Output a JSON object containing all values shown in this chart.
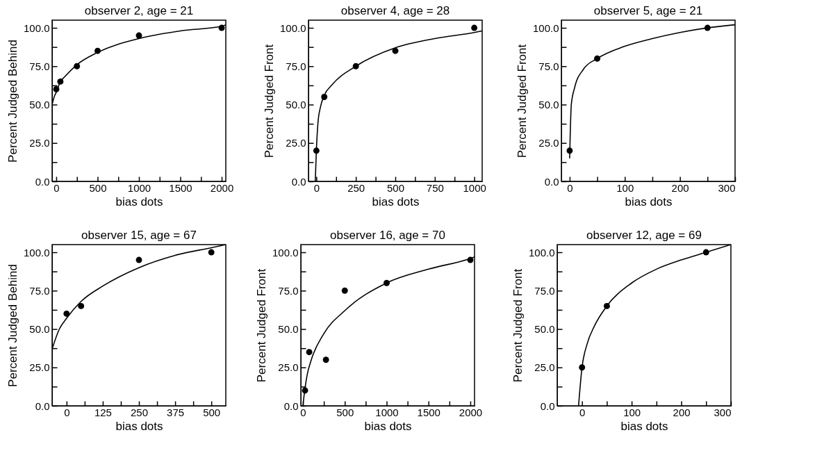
{
  "chart_data": [
    {
      "type": "scatter",
      "title": "observer 2, age = 21",
      "xlabel": "bias dots",
      "ylabel": "Percent Judged Behind",
      "xlim": [
        -50,
        2050
      ],
      "ylim": [
        0,
        105
      ],
      "xticks": [
        0,
        {
          "value": 250,
          "label": null
        },
        500,
        {
          "value": 750,
          "label": null
        },
        1000,
        {
          "value": 1250,
          "label": null
        },
        1500,
        {
          "value": 1750,
          "label": null
        },
        2000
      ],
      "yticks": [
        {
          "value": 0,
          "label": "0.0"
        },
        {
          "value": 12.5,
          "label": null
        },
        {
          "value": 25,
          "label": "25.0"
        },
        {
          "value": 37.5,
          "label": null
        },
        {
          "value": 50,
          "label": "50.0"
        },
        {
          "value": 62.5,
          "label": null
        },
        {
          "value": 75,
          "label": "75.0"
        },
        {
          "value": 87.5,
          "label": null
        },
        {
          "value": 100,
          "label": "100.0"
        }
      ],
      "series": [
        {
          "type": "scatter",
          "marker": "circle",
          "color": "#000000",
          "x": [
            0,
            50,
            250,
            500,
            1000,
            2000
          ],
          "values": [
            60,
            65,
            75,
            85,
            95,
            100
          ]
        },
        {
          "type": "line",
          "color": "#000000",
          "x": [
            -50,
            -25,
            0,
            50,
            100,
            250,
            500,
            1000,
            1500,
            2000,
            2050
          ],
          "values": [
            50,
            55,
            58,
            65,
            68,
            76,
            84,
            93,
            98,
            101,
            102
          ]
        }
      ]
    },
    {
      "type": "scatter",
      "title": "observer 4, age = 28",
      "xlabel": "bias dots",
      "ylabel": "Percent Judged Front",
      "xlim": [
        -50,
        1050
      ],
      "ylim": [
        0,
        105
      ],
      "xticks": [
        0,
        {
          "value": 125,
          "label": null
        },
        250,
        {
          "value": 375,
          "label": null
        },
        500,
        {
          "value": 625,
          "label": null
        },
        750,
        {
          "value": 875,
          "label": null
        },
        1000
      ],
      "yticks": [
        {
          "value": 0,
          "label": "0.0"
        },
        {
          "value": 12.5,
          "label": null
        },
        {
          "value": 25,
          "label": "25.0"
        },
        {
          "value": 37.5,
          "label": null
        },
        {
          "value": 50,
          "label": "50.0"
        },
        {
          "value": 62.5,
          "label": null
        },
        {
          "value": 75,
          "label": "75.0"
        },
        {
          "value": 87.5,
          "label": null
        },
        {
          "value": 100,
          "label": "100.0"
        }
      ],
      "series": [
        {
          "type": "scatter",
          "marker": "circle",
          "color": "#000000",
          "x": [
            0,
            50,
            250,
            500,
            1000
          ],
          "values": [
            20,
            55,
            75,
            85,
            100
          ]
        },
        {
          "type": "line",
          "color": "#000000",
          "x": [
            -7,
            0,
            10,
            25,
            50,
            100,
            250,
            500,
            750,
            1000,
            1050
          ],
          "values": [
            0,
            20,
            38,
            48,
            56,
            63,
            75,
            87,
            93,
            97,
            98
          ]
        }
      ]
    },
    {
      "type": "scatter",
      "title": "observer 5, age = 21",
      "xlabel": "bias dots",
      "ylabel": "Percent Judged Front",
      "xlim": [
        -15,
        300
      ],
      "ylim": [
        0,
        105
      ],
      "xticks": [
        0,
        {
          "value": 50,
          "label": null
        },
        100,
        {
          "value": 150,
          "label": null
        },
        200,
        {
          "value": 250,
          "label": null
        },
        300
      ],
      "yticks": [
        {
          "value": 0,
          "label": "0.0"
        },
        {
          "value": 12.5,
          "label": null
        },
        {
          "value": 25,
          "label": "25.0"
        },
        {
          "value": 37.5,
          "label": null
        },
        {
          "value": 50,
          "label": "50.0"
        },
        {
          "value": 62.5,
          "label": null
        },
        {
          "value": 75,
          "label": "75.0"
        },
        {
          "value": 87.5,
          "label": null
        },
        {
          "value": 100,
          "label": "100.0"
        }
      ],
      "series": [
        {
          "type": "scatter",
          "marker": "circle",
          "color": "#000000",
          "x": [
            0,
            50,
            250
          ],
          "values": [
            20,
            80,
            100
          ]
        },
        {
          "type": "line",
          "color": "#000000",
          "x": [
            0,
            1,
            3,
            9,
            25,
            50,
            100,
            150,
            200,
            250,
            300
          ],
          "values": [
            15,
            30,
            50,
            61,
            73,
            80,
            88,
            93,
            97,
            100,
            102
          ]
        }
      ]
    },
    {
      "type": "scatter",
      "title": "observer 15, age = 67",
      "xlabel": "bias dots",
      "ylabel": "Percent Judged Behind",
      "xlim": [
        -50,
        550
      ],
      "ylim": [
        0,
        105
      ],
      "xticks": [
        0,
        {
          "value": 62.5,
          "label": null
        },
        125,
        {
          "value": 187.5,
          "label": null
        },
        250,
        {
          "value": 312.5,
          "label": null
        },
        375,
        {
          "value": 437.5,
          "label": null
        },
        500
      ],
      "yticks": [
        {
          "value": 0,
          "label": "0.0"
        },
        {
          "value": 12.5,
          "label": null
        },
        {
          "value": 25,
          "label": "25.0"
        },
        {
          "value": 37.5,
          "label": null
        },
        {
          "value": 50,
          "label": "50.0"
        },
        {
          "value": 62.5,
          "label": null
        },
        {
          "value": 75,
          "label": "75.0"
        },
        {
          "value": 87.5,
          "label": null
        },
        {
          "value": 100,
          "label": "100.0"
        }
      ],
      "series": [
        {
          "type": "scatter",
          "marker": "circle",
          "color": "#000000",
          "x": [
            0,
            50,
            250,
            500
          ],
          "values": [
            60,
            65,
            95,
            100
          ]
        },
        {
          "type": "line",
          "color": "#000000",
          "x": [
            -50,
            -25,
            0,
            50,
            125,
            250,
            375,
            500,
            550
          ],
          "values": [
            37,
            50,
            57,
            68,
            78,
            90,
            98,
            103,
            105
          ]
        }
      ]
    },
    {
      "type": "scatter",
      "title": "observer 16, age = 70",
      "xlabel": "bias dots",
      "ylabel": "Percent Judged Front",
      "xlim": [
        -25,
        2050
      ],
      "ylim": [
        0,
        105
      ],
      "xticks": [
        0,
        {
          "value": 250,
          "label": null
        },
        500,
        {
          "value": 750,
          "label": null
        },
        1000,
        {
          "value": 1250,
          "label": null
        },
        1500,
        {
          "value": 1750,
          "label": null
        },
        2000
      ],
      "yticks": [
        {
          "value": 0,
          "label": "0.0"
        },
        {
          "value": 12.5,
          "label": null
        },
        {
          "value": 25,
          "label": "25.0"
        },
        {
          "value": 37.5,
          "label": null
        },
        {
          "value": 50,
          "label": "50.0"
        },
        {
          "value": 62.5,
          "label": null
        },
        {
          "value": 75,
          "label": "75.0"
        },
        {
          "value": 87.5,
          "label": null
        },
        {
          "value": 100,
          "label": "100.0"
        }
      ],
      "series": [
        {
          "type": "scatter",
          "marker": "circle",
          "color": "#000000",
          "x": [
            25,
            75,
            275,
            500,
            1000,
            2000
          ],
          "values": [
            10,
            35,
            30,
            75,
            80,
            95
          ]
        },
        {
          "type": "line",
          "color": "#000000",
          "x": [
            0,
            10,
            50,
            100,
            250,
            500,
            1000,
            1500,
            2000,
            2050
          ],
          "values": [
            0,
            5,
            20,
            30,
            47,
            62,
            80,
            89,
            96,
            97
          ]
        }
      ]
    },
    {
      "type": "scatter",
      "title": "observer 12, age = 69",
      "xlabel": "bias dots",
      "ylabel": "Percent Judged Front",
      "xlim": [
        -50,
        300
      ],
      "ylim": [
        0,
        105
      ],
      "xticks": [
        0,
        {
          "value": 50,
          "label": null
        },
        100,
        {
          "value": 150,
          "label": null
        },
        200,
        {
          "value": 250,
          "label": null
        },
        300
      ],
      "yticks": [
        {
          "value": 0,
          "label": "0.0"
        },
        {
          "value": 12.5,
          "label": null
        },
        {
          "value": 25,
          "label": "25.0"
        },
        {
          "value": 37.5,
          "label": null
        },
        {
          "value": 50,
          "label": "50.0"
        },
        {
          "value": 62.5,
          "label": null
        },
        {
          "value": 75,
          "label": "75.0"
        },
        {
          "value": 87.5,
          "label": null
        },
        {
          "value": 100,
          "label": "100.0"
        }
      ],
      "series": [
        {
          "type": "scatter",
          "marker": "circle",
          "color": "#000000",
          "x": [
            0,
            50,
            250
          ],
          "values": [
            25,
            65,
            100
          ]
        },
        {
          "type": "line",
          "color": "#000000",
          "x": [
            -7,
            0,
            10,
            25,
            50,
            100,
            150,
            200,
            250,
            300
          ],
          "values": [
            0,
            25,
            40,
            52,
            65,
            80,
            89,
            95,
            100,
            105
          ]
        }
      ]
    }
  ]
}
